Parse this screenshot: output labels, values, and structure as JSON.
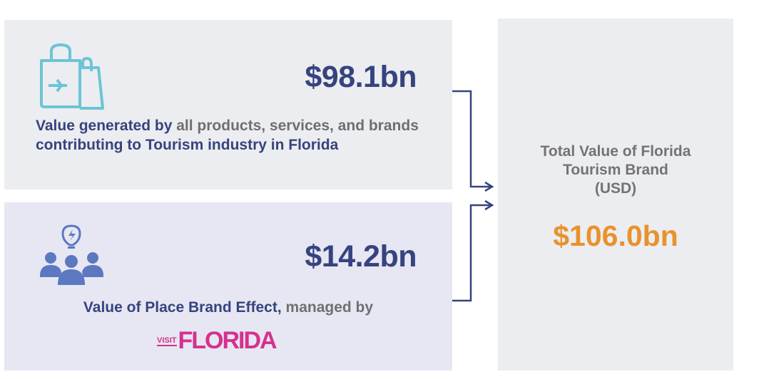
{
  "top_card": {
    "value": "$98.1bn",
    "desc": [
      {
        "text": "Value generated by ",
        "tone": "navy"
      },
      {
        "text": "all products, services, and brands ",
        "tone": "gray"
      },
      {
        "text": "contributing to Tourism industry in Florida",
        "tone": "navy"
      }
    ],
    "icon": "shopping-bag-plane-icon"
  },
  "bottom_card": {
    "value": "$14.2bn",
    "desc": [
      {
        "text": "Value of Place Brand Effect, ",
        "tone": "navy"
      },
      {
        "text": "managed by",
        "tone": "gray"
      }
    ],
    "logo": {
      "visit": "VISIT",
      "florida": "FLORIDA"
    },
    "icon": "people-lightbulb-icon"
  },
  "total_card": {
    "title_lines": [
      "Total Value of Florida",
      "Tourism Brand",
      "(USD)"
    ],
    "value": "$106.0bn"
  },
  "colors": {
    "navy": "#36437f",
    "gray": "#6f6f72",
    "orange": "#e8922e",
    "pink": "#d6318c",
    "cyan": "#6cc4d8",
    "icon_blue": "#5b78c0"
  }
}
